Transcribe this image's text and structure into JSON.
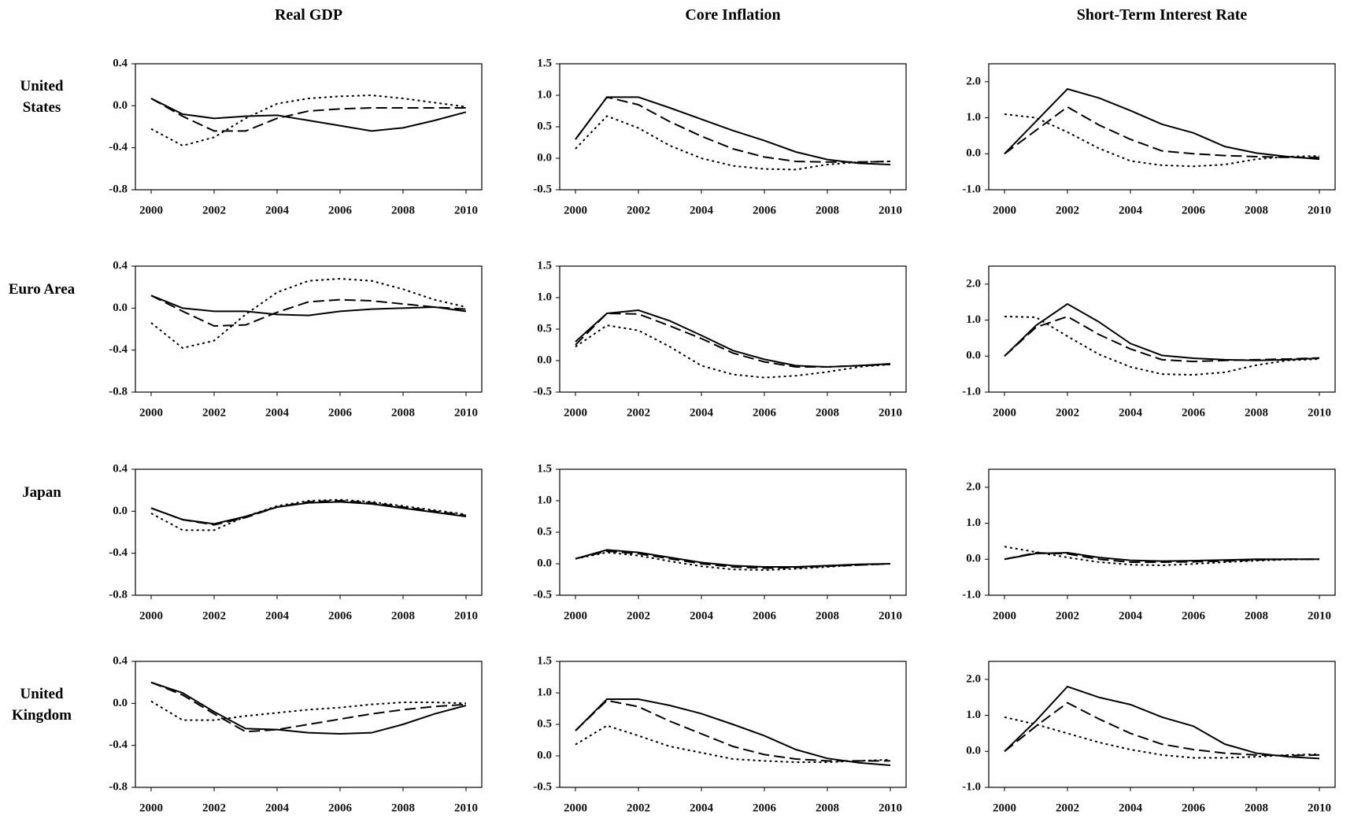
{
  "column_titles": [
    "Real GDP",
    "Core Inflation",
    "Short-Term Interest Rate"
  ],
  "row_labels": [
    "United States",
    "Euro Area",
    "Japan",
    "United Kingdom"
  ],
  "chart_data": [
    {
      "type": "line",
      "x": [
        2000,
        2001,
        2002,
        2003,
        2004,
        2005,
        2006,
        2007,
        2008,
        2009,
        2010
      ],
      "xlim": [
        1999.5,
        2010.5
      ],
      "xticks": [
        2000,
        2002,
        2004,
        2006,
        2008,
        2010
      ],
      "ylim": [
        -0.8,
        0.4
      ],
      "yticks": [
        -0.8,
        -0.4,
        {
          "value": 0,
          "label": "0.0"
        },
        0.4
      ],
      "series": [
        {
          "color": "#000",
          "dash": "solid",
          "values": [
            0.07,
            -0.08,
            -0.12,
            -0.1,
            -0.09,
            -0.14,
            -0.19,
            -0.24,
            -0.21,
            -0.14,
            -0.06
          ]
        },
        {
          "color": "#000",
          "dash": "dashed",
          "values": [
            0.07,
            -0.1,
            -0.24,
            -0.24,
            -0.12,
            -0.05,
            -0.03,
            -0.02,
            -0.02,
            -0.02,
            -0.02
          ]
        },
        {
          "color": "#000",
          "dash": "dotted",
          "values": [
            -0.22,
            -0.38,
            -0.3,
            -0.12,
            0.02,
            0.07,
            0.09,
            0.1,
            0.07,
            0.03,
            -0.01
          ]
        }
      ]
    },
    {
      "type": "line",
      "x": [
        2000,
        2001,
        2002,
        2003,
        2004,
        2005,
        2006,
        2007,
        2008,
        2009,
        2010
      ],
      "xlim": [
        1999.5,
        2010.5
      ],
      "xticks": [
        2000,
        2002,
        2004,
        2006,
        2008,
        2010
      ],
      "ylim": [
        -0.5,
        1.5
      ],
      "yticks": [
        -0.5,
        {
          "value": 0,
          "label": "0.0"
        },
        0.5,
        {
          "value": 1,
          "label": "1.0"
        },
        1.5
      ],
      "series": [
        {
          "color": "#000",
          "dash": "solid",
          "values": [
            0.3,
            0.97,
            0.97,
            0.8,
            0.62,
            0.44,
            0.28,
            0.1,
            -0.02,
            -0.08,
            -0.1
          ]
        },
        {
          "color": "#000",
          "dash": "dashed",
          "values": [
            0.3,
            0.97,
            0.85,
            0.58,
            0.35,
            0.15,
            0.02,
            -0.05,
            -0.06,
            -0.06,
            -0.05
          ]
        },
        {
          "color": "#000",
          "dash": "dotted",
          "values": [
            0.15,
            0.67,
            0.48,
            0.2,
            0,
            -0.12,
            -0.17,
            -0.18,
            -0.1,
            -0.06,
            -0.05
          ]
        }
      ]
    },
    {
      "type": "line",
      "x": [
        2000,
        2001,
        2002,
        2003,
        2004,
        2005,
        2006,
        2007,
        2008,
        2009,
        2010
      ],
      "xlim": [
        1999.5,
        2010.5
      ],
      "xticks": [
        2000,
        2002,
        2004,
        2006,
        2008,
        2010
      ],
      "ylim": [
        -1,
        2.5
      ],
      "yticks": [
        {
          "value": -1,
          "label": "-1.0"
        },
        {
          "value": 0,
          "label": "0.0"
        },
        {
          "value": 1,
          "label": "1.0"
        },
        {
          "value": 2,
          "label": "2.0"
        }
      ],
      "series": [
        {
          "color": "#000",
          "dash": "solid",
          "values": [
            0,
            0.9,
            1.8,
            1.55,
            1.2,
            0.82,
            0.58,
            0.2,
            0.02,
            -0.08,
            -0.15
          ]
        },
        {
          "color": "#000",
          "dash": "dashed",
          "values": [
            0,
            0.65,
            1.3,
            0.8,
            0.4,
            0.08,
            0,
            -0.05,
            -0.08,
            -0.1,
            -0.1
          ]
        },
        {
          "color": "#000",
          "dash": "dotted",
          "values": [
            1.1,
            1,
            0.6,
            0.15,
            -0.2,
            -0.32,
            -0.35,
            -0.3,
            -0.15,
            -0.08,
            -0.06
          ]
        }
      ]
    },
    {
      "type": "line",
      "x": [
        2000,
        2001,
        2002,
        2003,
        2004,
        2005,
        2006,
        2007,
        2008,
        2009,
        2010
      ],
      "xlim": [
        1999.5,
        2010.5
      ],
      "xticks": [
        2000,
        2002,
        2004,
        2006,
        2008,
        2010
      ],
      "ylim": [
        -0.8,
        0.4
      ],
      "yticks": [
        -0.8,
        -0.4,
        {
          "value": 0,
          "label": "0.0"
        },
        0.4
      ],
      "series": [
        {
          "color": "#000",
          "dash": "solid",
          "values": [
            0.12,
            0,
            -0.03,
            -0.03,
            -0.06,
            -0.07,
            -0.03,
            -0.01,
            0,
            0.01,
            -0.03
          ]
        },
        {
          "color": "#000",
          "dash": "dashed",
          "values": [
            0.12,
            -0.03,
            -0.17,
            -0.16,
            -0.04,
            0.06,
            0.08,
            0.07,
            0.04,
            0.01,
            -0.01
          ]
        },
        {
          "color": "#000",
          "dash": "dotted",
          "values": [
            -0.14,
            -0.38,
            -0.31,
            -0.06,
            0.15,
            0.26,
            0.28,
            0.26,
            0.18,
            0.08,
            0.01
          ]
        }
      ]
    },
    {
      "type": "line",
      "x": [
        2000,
        2001,
        2002,
        2003,
        2004,
        2005,
        2006,
        2007,
        2008,
        2009,
        2010
      ],
      "xlim": [
        1999.5,
        2010.5
      ],
      "xticks": [
        2000,
        2002,
        2004,
        2006,
        2008,
        2010
      ],
      "ylim": [
        -0.5,
        1.5
      ],
      "yticks": [
        -0.5,
        {
          "value": 0,
          "label": "0.0"
        },
        0.5,
        {
          "value": 1,
          "label": "1.0"
        },
        1.5
      ],
      "series": [
        {
          "color": "#000",
          "dash": "solid",
          "values": [
            0.3,
            0.75,
            0.8,
            0.63,
            0.4,
            0.16,
            0.02,
            -0.08,
            -0.1,
            -0.08,
            -0.05
          ]
        },
        {
          "color": "#000",
          "dash": "dashed",
          "values": [
            0.25,
            0.75,
            0.74,
            0.55,
            0.35,
            0.12,
            -0.02,
            -0.1,
            -0.1,
            -0.08,
            -0.06
          ]
        },
        {
          "color": "#000",
          "dash": "dotted",
          "values": [
            0.22,
            0.56,
            0.48,
            0.22,
            -0.08,
            -0.22,
            -0.27,
            -0.24,
            -0.18,
            -0.1,
            -0.06
          ]
        }
      ]
    },
    {
      "type": "line",
      "x": [
        2000,
        2001,
        2002,
        2003,
        2004,
        2005,
        2006,
        2007,
        2008,
        2009,
        2010
      ],
      "xlim": [
        1999.5,
        2010.5
      ],
      "xticks": [
        2000,
        2002,
        2004,
        2006,
        2008,
        2010
      ],
      "ylim": [
        -1,
        2.5
      ],
      "yticks": [
        {
          "value": -1,
          "label": "-1.0"
        },
        {
          "value": 0,
          "label": "0.0"
        },
        {
          "value": 1,
          "label": "1.0"
        },
        {
          "value": 2,
          "label": "2.0"
        }
      ],
      "series": [
        {
          "color": "#000",
          "dash": "solid",
          "values": [
            0,
            0.85,
            1.45,
            0.95,
            0.35,
            0.02,
            -0.06,
            -0.1,
            -0.12,
            -0.1,
            -0.06
          ]
        },
        {
          "color": "#000",
          "dash": "dashed",
          "values": [
            0,
            0.8,
            1.1,
            0.6,
            0.2,
            -0.1,
            -0.15,
            -0.12,
            -0.1,
            -0.08,
            -0.05
          ]
        },
        {
          "color": "#000",
          "dash": "dotted",
          "values": [
            1.1,
            1.08,
            0.55,
            0.05,
            -0.3,
            -0.5,
            -0.52,
            -0.45,
            -0.25,
            -0.12,
            -0.08
          ]
        }
      ]
    },
    {
      "type": "line",
      "x": [
        2000,
        2001,
        2002,
        2003,
        2004,
        2005,
        2006,
        2007,
        2008,
        2009,
        2010
      ],
      "xlim": [
        1999.5,
        2010.5
      ],
      "xticks": [
        2000,
        2002,
        2004,
        2006,
        2008,
        2010
      ],
      "ylim": [
        -0.8,
        0.4
      ],
      "yticks": [
        -0.8,
        -0.4,
        {
          "value": 0,
          "label": "0.0"
        },
        0.4
      ],
      "series": [
        {
          "color": "#000",
          "dash": "solid",
          "values": [
            0.03,
            -0.08,
            -0.12,
            -0.05,
            0.04,
            0.08,
            0.09,
            0.07,
            0.03,
            -0.01,
            -0.05
          ]
        },
        {
          "color": "#000",
          "dash": "dashed",
          "values": [
            0.03,
            -0.08,
            -0.13,
            -0.06,
            0.04,
            0.09,
            0.1,
            0.08,
            0.04,
            0,
            -0.04
          ]
        },
        {
          "color": "#000",
          "dash": "dotted",
          "values": [
            -0.02,
            -0.18,
            -0.18,
            -0.05,
            0.05,
            0.1,
            0.11,
            0.09,
            0.05,
            0.01,
            -0.03
          ]
        }
      ]
    },
    {
      "type": "line",
      "x": [
        2000,
        2001,
        2002,
        2003,
        2004,
        2005,
        2006,
        2007,
        2008,
        2009,
        2010
      ],
      "xlim": [
        1999.5,
        2010.5
      ],
      "xticks": [
        2000,
        2002,
        2004,
        2006,
        2008,
        2010
      ],
      "ylim": [
        -0.5,
        1.5
      ],
      "yticks": [
        -0.5,
        {
          "value": 0,
          "label": "0.0"
        },
        0.5,
        {
          "value": 1,
          "label": "1.0"
        },
        1.5
      ],
      "series": [
        {
          "color": "#000",
          "dash": "solid",
          "values": [
            0.08,
            0.22,
            0.18,
            0.1,
            0.02,
            -0.03,
            -0.05,
            -0.05,
            -0.03,
            -0.01,
            0
          ]
        },
        {
          "color": "#000",
          "dash": "dashed",
          "values": [
            0.08,
            0.2,
            0.16,
            0.08,
            0,
            -0.05,
            -0.07,
            -0.06,
            -0.04,
            -0.02,
            0
          ]
        },
        {
          "color": "#000",
          "dash": "dotted",
          "values": [
            0.08,
            0.18,
            0.13,
            0.04,
            -0.04,
            -0.09,
            -0.1,
            -0.08,
            -0.05,
            -0.02,
            0
          ]
        }
      ]
    },
    {
      "type": "line",
      "x": [
        2000,
        2001,
        2002,
        2003,
        2004,
        2005,
        2006,
        2007,
        2008,
        2009,
        2010
      ],
      "xlim": [
        1999.5,
        2010.5
      ],
      "xticks": [
        2000,
        2002,
        2004,
        2006,
        2008,
        2010
      ],
      "ylim": [
        -1,
        2.5
      ],
      "yticks": [
        {
          "value": -1,
          "label": "-1.0"
        },
        {
          "value": 0,
          "label": "0.0"
        },
        {
          "value": 1,
          "label": "1.0"
        },
        {
          "value": 2,
          "label": "2.0"
        }
      ],
      "series": [
        {
          "color": "#000",
          "dash": "solid",
          "values": [
            0,
            0.16,
            0.18,
            0.05,
            -0.03,
            -0.05,
            -0.04,
            -0.02,
            0,
            0,
            0
          ]
        },
        {
          "color": "#000",
          "dash": "dashed",
          "values": [
            0,
            0.18,
            0.15,
            0,
            -0.08,
            -0.08,
            -0.07,
            -0.05,
            -0.02,
            0,
            0
          ]
        },
        {
          "color": "#000",
          "dash": "dotted",
          "values": [
            0.35,
            0.2,
            0.05,
            -0.08,
            -0.15,
            -0.17,
            -0.13,
            -0.08,
            -0.04,
            -0.01,
            0
          ]
        }
      ]
    },
    {
      "type": "line",
      "x": [
        2000,
        2001,
        2002,
        2003,
        2004,
        2005,
        2006,
        2007,
        2008,
        2009,
        2010
      ],
      "xlim": [
        1999.5,
        2010.5
      ],
      "xticks": [
        2000,
        2002,
        2004,
        2006,
        2008,
        2010
      ],
      "ylim": [
        -0.8,
        0.4
      ],
      "yticks": [
        -0.8,
        -0.4,
        {
          "value": 0,
          "label": "0.0"
        },
        0.4
      ],
      "series": [
        {
          "color": "#000",
          "dash": "solid",
          "values": [
            0.2,
            0.1,
            -0.08,
            -0.24,
            -0.25,
            -0.28,
            -0.29,
            -0.28,
            -0.2,
            -0.1,
            -0.02
          ]
        },
        {
          "color": "#000",
          "dash": "dashed",
          "values": [
            0.2,
            0.08,
            -0.1,
            -0.27,
            -0.25,
            -0.2,
            -0.15,
            -0.1,
            -0.06,
            -0.03,
            -0.01
          ]
        },
        {
          "color": "#000",
          "dash": "dotted",
          "values": [
            0.02,
            -0.16,
            -0.16,
            -0.12,
            -0.09,
            -0.06,
            -0.04,
            -0.01,
            0.01,
            0.01,
            0
          ]
        }
      ]
    },
    {
      "type": "line",
      "x": [
        2000,
        2001,
        2002,
        2003,
        2004,
        2005,
        2006,
        2007,
        2008,
        2009,
        2010
      ],
      "xlim": [
        1999.5,
        2010.5
      ],
      "xticks": [
        2000,
        2002,
        2004,
        2006,
        2008,
        2010
      ],
      "ylim": [
        -0.5,
        1.5
      ],
      "yticks": [
        -0.5,
        {
          "value": 0,
          "label": "0.0"
        },
        0.5,
        {
          "value": 1,
          "label": "1.0"
        },
        1.5
      ],
      "series": [
        {
          "color": "#000",
          "dash": "solid",
          "values": [
            0.4,
            0.9,
            0.9,
            0.8,
            0.67,
            0.5,
            0.32,
            0.1,
            -0.04,
            -0.11,
            -0.15
          ]
        },
        {
          "color": "#000",
          "dash": "dashed",
          "values": [
            0.4,
            0.88,
            0.78,
            0.55,
            0.35,
            0.15,
            0.02,
            -0.05,
            -0.08,
            -0.08,
            -0.08
          ]
        },
        {
          "color": "#000",
          "dash": "dotted",
          "values": [
            0.18,
            0.48,
            0.32,
            0.15,
            0.05,
            -0.05,
            -0.08,
            -0.1,
            -0.1,
            -0.08,
            -0.06
          ]
        }
      ]
    },
    {
      "type": "line",
      "x": [
        2000,
        2001,
        2002,
        2003,
        2004,
        2005,
        2006,
        2007,
        2008,
        2009,
        2010
      ],
      "xlim": [
        1999.5,
        2010.5
      ],
      "xticks": [
        2000,
        2002,
        2004,
        2006,
        2008,
        2010
      ],
      "ylim": [
        -1,
        2.5
      ],
      "yticks": [
        {
          "value": -1,
          "label": "-1.0"
        },
        {
          "value": 0,
          "label": "0.0"
        },
        {
          "value": 1,
          "label": "1.0"
        },
        {
          "value": 2,
          "label": "2.0"
        }
      ],
      "series": [
        {
          "color": "#000",
          "dash": "solid",
          "values": [
            0,
            0.85,
            1.8,
            1.5,
            1.3,
            0.95,
            0.7,
            0.2,
            -0.05,
            -0.15,
            -0.2
          ]
        },
        {
          "color": "#000",
          "dash": "dashed",
          "values": [
            0,
            0.7,
            1.35,
            0.9,
            0.5,
            0.2,
            0.05,
            -0.05,
            -0.1,
            -0.12,
            -0.1
          ]
        },
        {
          "color": "#000",
          "dash": "dotted",
          "values": [
            0.95,
            0.75,
            0.5,
            0.25,
            0.05,
            -0.1,
            -0.18,
            -0.18,
            -0.15,
            -0.1,
            -0.08
          ]
        }
      ]
    }
  ]
}
